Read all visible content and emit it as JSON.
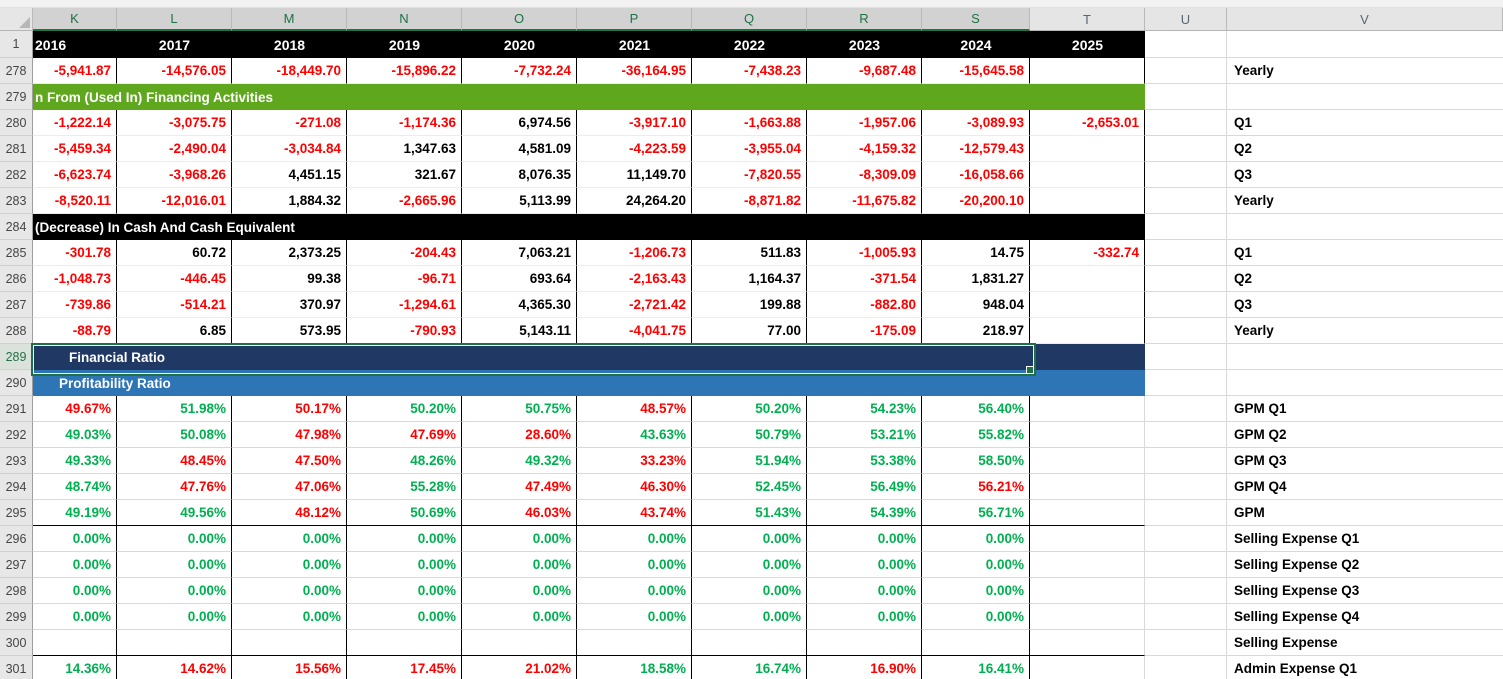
{
  "colors": {
    "palette": {
      "r": "#ff0000",
      "g": "#00b050",
      "k": "#000000"
    },
    "banner_green": "#5fa81e",
    "banner_black": "#000000",
    "banner_navy": "#1f3864",
    "banner_blue": "#2e75b6",
    "year_row_bg": "#000000",
    "selection_border": "#1e7145"
  },
  "sheet": {
    "selection": {
      "row": "289",
      "range": "K289:S289"
    },
    "columns": [
      {
        "letter": "K",
        "year": "2016",
        "selected": true
      },
      {
        "letter": "L",
        "year": "2017",
        "selected": true
      },
      {
        "letter": "M",
        "year": "2018",
        "selected": true
      },
      {
        "letter": "N",
        "year": "2019",
        "selected": true
      },
      {
        "letter": "O",
        "year": "2020",
        "selected": true
      },
      {
        "letter": "P",
        "year": "2021",
        "selected": true
      },
      {
        "letter": "Q",
        "year": "2022",
        "selected": true
      },
      {
        "letter": "R",
        "year": "2023",
        "selected": true
      },
      {
        "letter": "S",
        "year": "2024",
        "selected": true
      },
      {
        "letter": "T",
        "year": "2025",
        "selected": false
      },
      {
        "letter": "U",
        "year": "",
        "selected": false
      },
      {
        "letter": "V",
        "year": "",
        "selected": false
      }
    ],
    "year_row_num": "1",
    "rows": [
      {
        "n": "278",
        "t": "num",
        "label": "Yearly",
        "c": [
          [
            "-5,941.87",
            "r"
          ],
          [
            "-14,576.05",
            "r"
          ],
          [
            "-18,449.70",
            "r"
          ],
          [
            "-15,896.22",
            "r"
          ],
          [
            "-7,732.24",
            "r"
          ],
          [
            "-36,164.95",
            "r"
          ],
          [
            "-7,438.23",
            "r"
          ],
          [
            "-9,687.48",
            "r"
          ],
          [
            "-15,645.58",
            "r"
          ],
          [
            "",
            ""
          ]
        ]
      },
      {
        "n": "279",
        "t": "banner",
        "style": "green",
        "text": "n From (Used In) Financing Activities",
        "label": ""
      },
      {
        "n": "280",
        "t": "num",
        "label": "Q1",
        "c": [
          [
            "-1,222.14",
            "r"
          ],
          [
            "-3,075.75",
            "r"
          ],
          [
            "-271.08",
            "r"
          ],
          [
            "-1,174.36",
            "r"
          ],
          [
            "6,974.56",
            "k"
          ],
          [
            "-3,917.10",
            "r"
          ],
          [
            "-1,663.88",
            "r"
          ],
          [
            "-1,957.06",
            "r"
          ],
          [
            "-3,089.93",
            "r"
          ],
          [
            "-2,653.01",
            "r"
          ]
        ]
      },
      {
        "n": "281",
        "t": "num",
        "label": "Q2",
        "c": [
          [
            "-5,459.34",
            "r"
          ],
          [
            "-2,490.04",
            "r"
          ],
          [
            "-3,034.84",
            "r"
          ],
          [
            "1,347.63",
            "k"
          ],
          [
            "4,581.09",
            "k"
          ],
          [
            "-4,223.59",
            "r"
          ],
          [
            "-3,955.04",
            "r"
          ],
          [
            "-4,159.32",
            "r"
          ],
          [
            "-12,579.43",
            "r"
          ],
          [
            "",
            ""
          ]
        ]
      },
      {
        "n": "282",
        "t": "num",
        "label": "Q3",
        "c": [
          [
            "-6,623.74",
            "r"
          ],
          [
            "-3,968.26",
            "r"
          ],
          [
            "4,451.15",
            "k"
          ],
          [
            "321.67",
            "k"
          ],
          [
            "8,076.35",
            "k"
          ],
          [
            "11,149.70",
            "k"
          ],
          [
            "-7,820.55",
            "r"
          ],
          [
            "-8,309.09",
            "r"
          ],
          [
            "-16,058.66",
            "r"
          ],
          [
            "",
            ""
          ]
        ]
      },
      {
        "n": "283",
        "t": "num",
        "label": "Yearly",
        "c": [
          [
            "-8,520.11",
            "r"
          ],
          [
            "-12,016.01",
            "r"
          ],
          [
            "1,884.32",
            "k"
          ],
          [
            "-2,665.96",
            "r"
          ],
          [
            "5,113.99",
            "k"
          ],
          [
            "24,264.20",
            "k"
          ],
          [
            "-8,871.82",
            "r"
          ],
          [
            "-11,675.82",
            "r"
          ],
          [
            "-20,200.10",
            "r"
          ],
          [
            "",
            ""
          ]
        ]
      },
      {
        "n": "284",
        "t": "banner",
        "style": "black",
        "text": "(Decrease) In Cash And Cash Equivalent",
        "label": ""
      },
      {
        "n": "285",
        "t": "num",
        "label": "Q1",
        "c": [
          [
            "-301.78",
            "r"
          ],
          [
            "60.72",
            "k"
          ],
          [
            "2,373.25",
            "k"
          ],
          [
            "-204.43",
            "r"
          ],
          [
            "7,063.21",
            "k"
          ],
          [
            "-1,206.73",
            "r"
          ],
          [
            "511.83",
            "k"
          ],
          [
            "-1,005.93",
            "r"
          ],
          [
            "14.75",
            "k"
          ],
          [
            "-332.74",
            "r"
          ]
        ]
      },
      {
        "n": "286",
        "t": "num",
        "label": "Q2",
        "c": [
          [
            "-1,048.73",
            "r"
          ],
          [
            "-446.45",
            "r"
          ],
          [
            "99.38",
            "k"
          ],
          [
            "-96.71",
            "r"
          ],
          [
            "693.64",
            "k"
          ],
          [
            "-2,163.43",
            "r"
          ],
          [
            "1,164.37",
            "k"
          ],
          [
            "-371.54",
            "r"
          ],
          [
            "1,831.27",
            "k"
          ],
          [
            "",
            ""
          ]
        ]
      },
      {
        "n": "287",
        "t": "num",
        "label": "Q3",
        "c": [
          [
            "-739.86",
            "r"
          ],
          [
            "-514.21",
            "r"
          ],
          [
            "370.97",
            "k"
          ],
          [
            "-1,294.61",
            "r"
          ],
          [
            "4,365.30",
            "k"
          ],
          [
            "-2,721.42",
            "r"
          ],
          [
            "199.88",
            "k"
          ],
          [
            "-882.80",
            "r"
          ],
          [
            "948.04",
            "k"
          ],
          [
            "",
            ""
          ]
        ]
      },
      {
        "n": "288",
        "t": "num",
        "label": "Yearly",
        "c": [
          [
            "-88.79",
            "r"
          ],
          [
            "6.85",
            "k"
          ],
          [
            "573.95",
            "k"
          ],
          [
            "-790.93",
            "r"
          ],
          [
            "5,143.11",
            "k"
          ],
          [
            "-4,041.75",
            "r"
          ],
          [
            "77.00",
            "k"
          ],
          [
            "-175.09",
            "r"
          ],
          [
            "218.97",
            "k"
          ],
          [
            "",
            ""
          ]
        ]
      },
      {
        "n": "289",
        "t": "banner",
        "style": "navy",
        "text": "Financial Ratio",
        "label": ""
      },
      {
        "n": "290",
        "t": "banner",
        "style": "blue",
        "text": "Profitability Ratio",
        "label": ""
      },
      {
        "n": "291",
        "t": "pct",
        "label": "GPM Q1",
        "c": [
          [
            "49.67%",
            "r"
          ],
          [
            "51.98%",
            "g"
          ],
          [
            "50.17%",
            "r"
          ],
          [
            "50.20%",
            "g"
          ],
          [
            "50.75%",
            "g"
          ],
          [
            "48.57%",
            "r"
          ],
          [
            "50.20%",
            "g"
          ],
          [
            "54.23%",
            "g"
          ],
          [
            "56.40%",
            "g"
          ],
          [
            "",
            ""
          ]
        ]
      },
      {
        "n": "292",
        "t": "pct",
        "label": "GPM Q2",
        "c": [
          [
            "49.03%",
            "g"
          ],
          [
            "50.08%",
            "g"
          ],
          [
            "47.98%",
            "r"
          ],
          [
            "47.69%",
            "r"
          ],
          [
            "28.60%",
            "r"
          ],
          [
            "43.63%",
            "g"
          ],
          [
            "50.79%",
            "g"
          ],
          [
            "53.21%",
            "g"
          ],
          [
            "55.82%",
            "g"
          ],
          [
            "",
            ""
          ]
        ]
      },
      {
        "n": "293",
        "t": "pct",
        "label": "GPM Q3",
        "c": [
          [
            "49.33%",
            "g"
          ],
          [
            "48.45%",
            "r"
          ],
          [
            "47.50%",
            "r"
          ],
          [
            "48.26%",
            "g"
          ],
          [
            "49.32%",
            "g"
          ],
          [
            "33.23%",
            "r"
          ],
          [
            "51.94%",
            "g"
          ],
          [
            "53.38%",
            "g"
          ],
          [
            "58.50%",
            "g"
          ],
          [
            "",
            ""
          ]
        ]
      },
      {
        "n": "294",
        "t": "pct",
        "label": "GPM Q4",
        "c": [
          [
            "48.74%",
            "g"
          ],
          [
            "47.76%",
            "r"
          ],
          [
            "47.06%",
            "r"
          ],
          [
            "55.28%",
            "g"
          ],
          [
            "47.49%",
            "r"
          ],
          [
            "46.30%",
            "r"
          ],
          [
            "52.45%",
            "g"
          ],
          [
            "56.49%",
            "g"
          ],
          [
            "56.21%",
            "r"
          ],
          [
            "",
            ""
          ]
        ]
      },
      {
        "n": "295",
        "t": "pct",
        "label": "GPM",
        "blockEnd": true,
        "c": [
          [
            "49.19%",
            "g"
          ],
          [
            "49.56%",
            "g"
          ],
          [
            "48.12%",
            "r"
          ],
          [
            "50.69%",
            "g"
          ],
          [
            "46.03%",
            "r"
          ],
          [
            "43.74%",
            "r"
          ],
          [
            "51.43%",
            "g"
          ],
          [
            "54.39%",
            "g"
          ],
          [
            "56.71%",
            "g"
          ],
          [
            "",
            ""
          ]
        ]
      },
      {
        "n": "296",
        "t": "pct",
        "label": "Selling Expense Q1",
        "c": [
          [
            "0.00%",
            "g"
          ],
          [
            "0.00%",
            "g"
          ],
          [
            "0.00%",
            "g"
          ],
          [
            "0.00%",
            "g"
          ],
          [
            "0.00%",
            "g"
          ],
          [
            "0.00%",
            "g"
          ],
          [
            "0.00%",
            "g"
          ],
          [
            "0.00%",
            "g"
          ],
          [
            "0.00%",
            "g"
          ],
          [
            "",
            ""
          ]
        ]
      },
      {
        "n": "297",
        "t": "pct",
        "label": "Selling Expense Q2",
        "c": [
          [
            "0.00%",
            "g"
          ],
          [
            "0.00%",
            "g"
          ],
          [
            "0.00%",
            "g"
          ],
          [
            "0.00%",
            "g"
          ],
          [
            "0.00%",
            "g"
          ],
          [
            "0.00%",
            "g"
          ],
          [
            "0.00%",
            "g"
          ],
          [
            "0.00%",
            "g"
          ],
          [
            "0.00%",
            "g"
          ],
          [
            "",
            ""
          ]
        ]
      },
      {
        "n": "298",
        "t": "pct",
        "label": "Selling Expense Q3",
        "c": [
          [
            "0.00%",
            "g"
          ],
          [
            "0.00%",
            "g"
          ],
          [
            "0.00%",
            "g"
          ],
          [
            "0.00%",
            "g"
          ],
          [
            "0.00%",
            "g"
          ],
          [
            "0.00%",
            "g"
          ],
          [
            "0.00%",
            "g"
          ],
          [
            "0.00%",
            "g"
          ],
          [
            "0.00%",
            "g"
          ],
          [
            "",
            ""
          ]
        ]
      },
      {
        "n": "299",
        "t": "pct",
        "label": "Selling Expense Q4",
        "c": [
          [
            "0.00%",
            "g"
          ],
          [
            "0.00%",
            "g"
          ],
          [
            "0.00%",
            "g"
          ],
          [
            "0.00%",
            "g"
          ],
          [
            "0.00%",
            "g"
          ],
          [
            "0.00%",
            "g"
          ],
          [
            "0.00%",
            "g"
          ],
          [
            "0.00%",
            "g"
          ],
          [
            "0.00%",
            "g"
          ],
          [
            "",
            ""
          ]
        ]
      },
      {
        "n": "300",
        "t": "pct",
        "label": "Selling Expense",
        "blockEnd": true,
        "c": [
          [
            "",
            ""
          ],
          [
            "",
            ""
          ],
          [
            "",
            ""
          ],
          [
            "",
            ""
          ],
          [
            "",
            ""
          ],
          [
            "",
            ""
          ],
          [
            "",
            ""
          ],
          [
            "",
            ""
          ],
          [
            "",
            ""
          ],
          [
            "",
            ""
          ]
        ]
      },
      {
        "n": "301",
        "t": "pct",
        "label": "Admin Expense Q1",
        "c": [
          [
            "14.36%",
            "g"
          ],
          [
            "14.62%",
            "r"
          ],
          [
            "15.56%",
            "r"
          ],
          [
            "17.45%",
            "r"
          ],
          [
            "21.02%",
            "r"
          ],
          [
            "18.58%",
            "g"
          ],
          [
            "16.74%",
            "g"
          ],
          [
            "16.90%",
            "r"
          ],
          [
            "16.41%",
            "g"
          ],
          [
            "",
            ""
          ]
        ]
      }
    ]
  }
}
